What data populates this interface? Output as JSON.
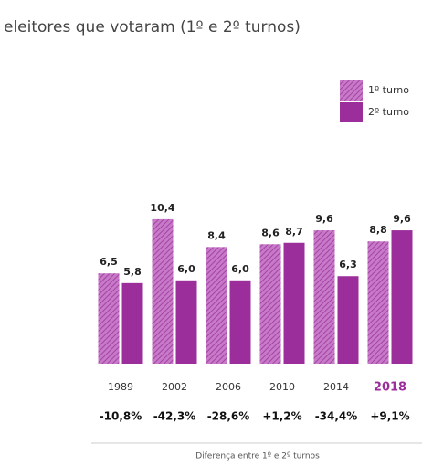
{
  "chart_data": {
    "type": "bar",
    "title": "eleitores que votaram (1º e 2º turnos)",
    "categories": [
      "1989",
      "2002",
      "2006",
      "2010",
      "2014",
      "2018"
    ],
    "highlight_index": 5,
    "highlight_color": "#9b2e9b",
    "series": [
      {
        "name": "1º turno",
        "color": "#b24fb2",
        "pattern": "hatch",
        "values": [
          6.5,
          10.4,
          8.4,
          8.6,
          9.6,
          8.8
        ],
        "value_labels": [
          "6,5",
          "10,4",
          "8,4",
          "8,6",
          "9,6",
          "8,8"
        ]
      },
      {
        "name": "2º turno",
        "color": "#9b2e9b",
        "values": [
          5.8,
          6.0,
          6.0,
          8.7,
          6.3,
          9.6
        ],
        "value_labels": [
          "5,8",
          "6,0",
          "6,0",
          "8,7",
          "6,3",
          "9,6"
        ]
      }
    ],
    "differences": [
      "-10,8%",
      "-42,3%",
      "-28,6%",
      "+1,2%",
      "-34,4%",
      "+9,1%"
    ],
    "footnote": "Diferença entre 1º e 2º turnos"
  }
}
